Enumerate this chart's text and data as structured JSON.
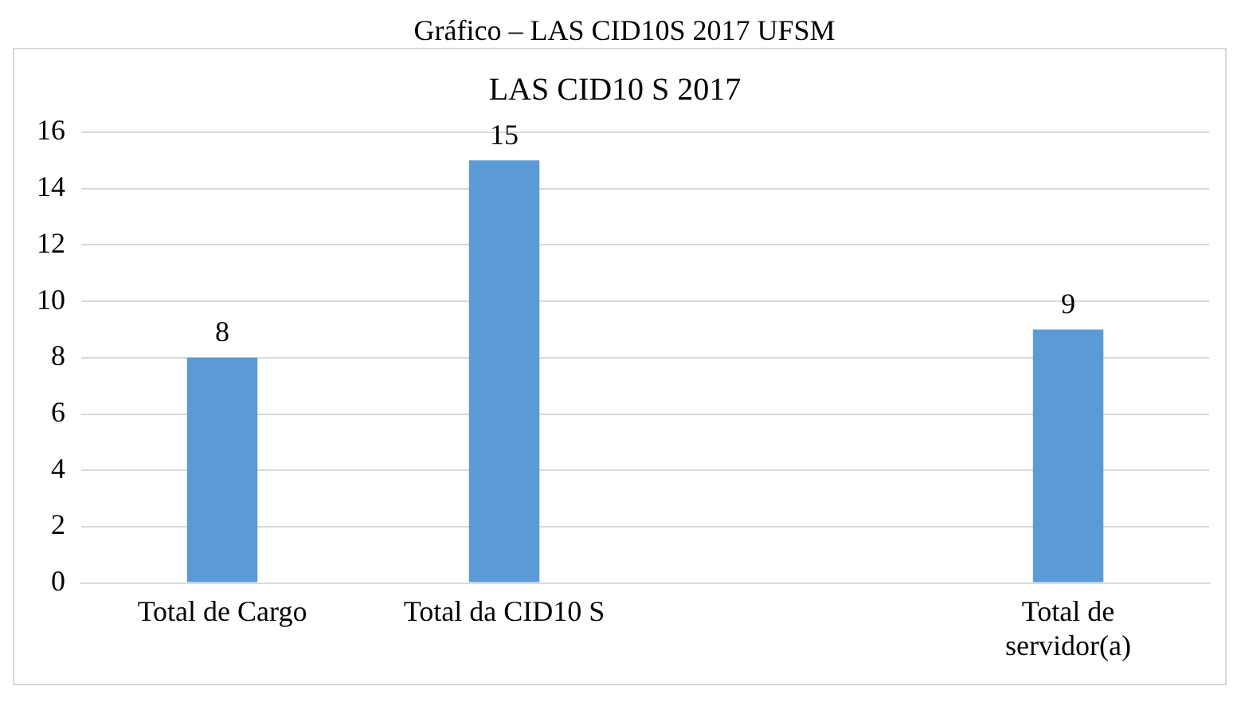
{
  "chart_data": {
    "type": "bar",
    "title": "LAS CID10 S 2017",
    "annotations": [
      "Gráfico – LAS CID10S 2017 UFSM"
    ],
    "categories": [
      "Total de Cargo",
      "Total da CID10 S",
      null,
      "Total de servidor(a)"
    ],
    "values": [
      8,
      15,
      null,
      9
    ],
    "color": "#5b9bd5",
    "ylim": [
      0,
      16
    ],
    "yticks": [
      0,
      2,
      4,
      6,
      8,
      10,
      12,
      14,
      16
    ],
    "grid": "y",
    "data_labels": true,
    "legend": false
  }
}
